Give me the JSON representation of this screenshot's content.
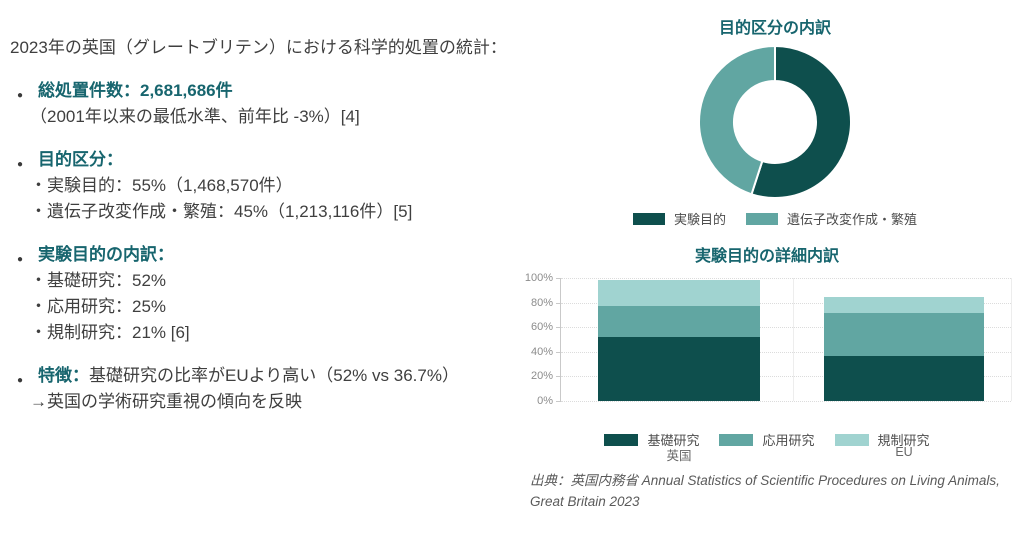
{
  "colors": {
    "dark_teal": "#0E4F4D",
    "mid_teal": "#61A6A2",
    "light_teal": "#A0D3D0",
    "heading_teal": "#17656E",
    "body_text": "#3F3F3F",
    "tick_text": "#8C8C8C",
    "source_text": "#5A5A5A"
  },
  "summary": {
    "title": "2023年の英国（グレートブリテン）における科学的処置の統計：",
    "bullets": [
      {
        "heading": "総処置件数：2,681,686件",
        "suffix": "",
        "lines": [
          "（2001年以来の最低水準、前年比 -3%）[4]"
        ]
      },
      {
        "heading": "目的区分：",
        "suffix": "",
        "lines": [
          "・実験目的：55%（1,468,570件）",
          "・遺伝子改変作成・繁殖：45%（1,213,116件）[5]"
        ]
      },
      {
        "heading": "実験目的の内訳：",
        "suffix": "",
        "lines": [
          "・基礎研究：52%",
          "・応用研究：25%",
          "・規制研究：21% [6]"
        ]
      },
      {
        "heading": "特徴：",
        "suffix": "基礎研究の比率がEUより高い（52% vs 36.7%）",
        "lines": [
          "→英国の学術研究重視の傾向を反映"
        ]
      }
    ]
  },
  "chart_data": [
    {
      "type": "pie",
      "variant": "donut",
      "title": "目的区分の内訳",
      "labels": [
        "実験目的",
        "遺伝子改変作成・繁殖"
      ],
      "values": [
        55,
        45
      ],
      "colors": [
        "#0E4F4D",
        "#61A6A2"
      ],
      "legend_position": "bottom"
    },
    {
      "type": "bar",
      "stacked": true,
      "title": "実験目的の詳細内訳",
      "categories": [
        "英国",
        "EU"
      ],
      "series": [
        {
          "name": "基礎研究",
          "color": "#0E4F4D",
          "values": [
            52,
            36.7
          ]
        },
        {
          "name": "応用研究",
          "color": "#61A6A2",
          "values": [
            25,
            35
          ]
        },
        {
          "name": "規制研究",
          "color": "#A0D3D0",
          "values": [
            21,
            13
          ]
        }
      ],
      "ylim": [
        0,
        100
      ],
      "yticks": [
        0,
        20,
        40,
        60,
        80,
        100
      ],
      "ytick_format": "percent",
      "grid": true,
      "legend_position": "bottom"
    }
  ],
  "source": "出典：英国内務省 Annual Statistics of Scientific Procedures on Living Animals, Great Britain 2023"
}
